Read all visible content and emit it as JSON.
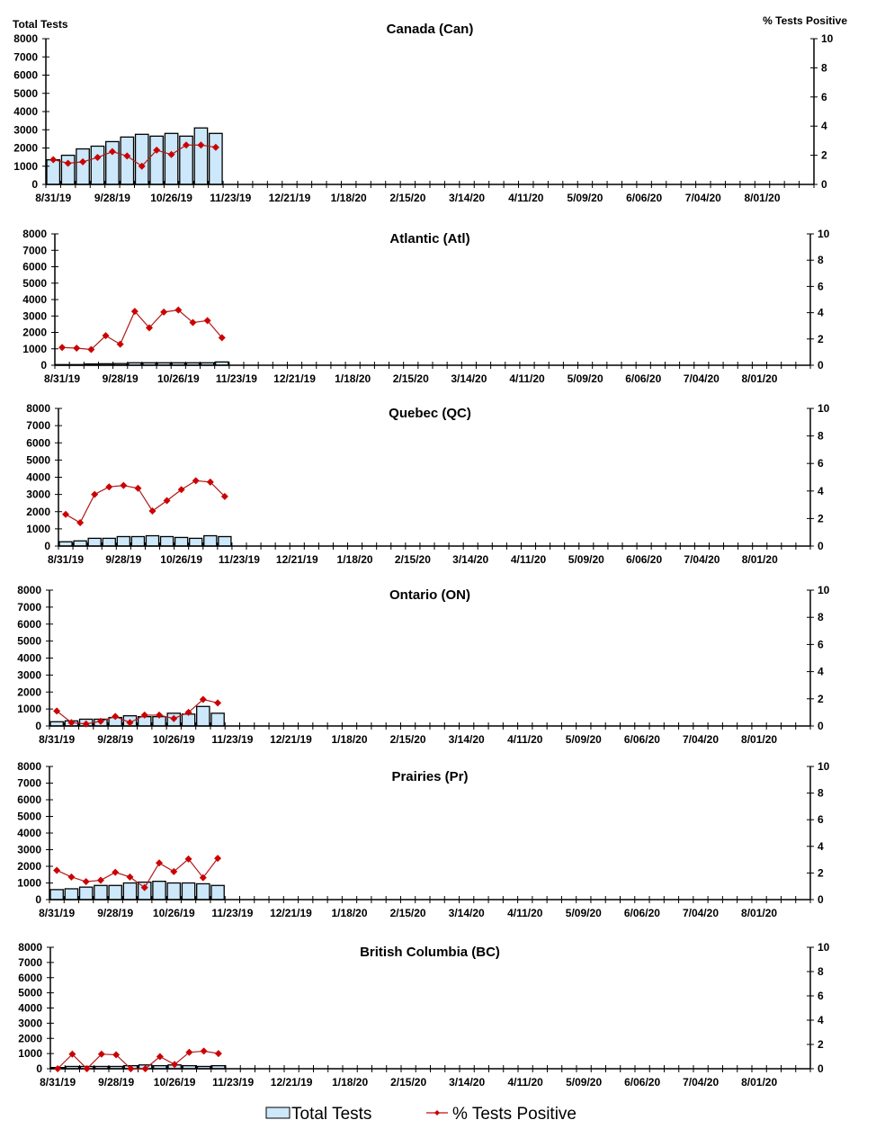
{
  "axis_titles": {
    "left": "Total Tests",
    "right": "% Tests Positive"
  },
  "legend": {
    "bars": "Total Tests",
    "line": "% Tests Positive"
  },
  "colors": {
    "bar_fill": "#cce8fa",
    "bar_stroke": "#000000",
    "line": "#b01818",
    "marker": "#cc0000"
  },
  "chart_data": [
    {
      "type": "bar+line",
      "title": "Canada (Can)",
      "grid": false,
      "legend": "bottom",
      "x_tick_labels": [
        "8/31/19",
        "9/28/19",
        "10/26/19",
        "11/23/19",
        "12/21/19",
        "1/18/20",
        "2/15/20",
        "3/14/20",
        "4/11/20",
        "5/09/20",
        "6/06/20",
        "7/04/20",
        "8/01/20"
      ],
      "xlim": [
        "8/31/19",
        "8/22/20"
      ],
      "ylim_left": [
        0,
        8000
      ],
      "ylim_right": [
        0,
        10
      ],
      "yticks_left": [
        0,
        1000,
        2000,
        3000,
        4000,
        5000,
        6000,
        7000,
        8000
      ],
      "yticks_right": [
        0,
        2,
        4,
        6,
        8,
        10
      ],
      "series": [
        {
          "name": "Total Tests",
          "axis": "left",
          "values": [
            1350,
            1600,
            1950,
            2100,
            2350,
            2600,
            2750,
            2650,
            2800,
            2650,
            3100,
            2800
          ]
        },
        {
          "name": "% Tests Positive",
          "axis": "right",
          "values": [
            1.7,
            1.45,
            1.55,
            1.85,
            2.25,
            1.95,
            1.25,
            2.35,
            2.05,
            2.7,
            2.7,
            2.55
          ]
        }
      ]
    },
    {
      "type": "bar+line",
      "title": "Atlantic (Atl)",
      "grid": false,
      "legend": "bottom",
      "x_tick_labels": [
        "8/31/19",
        "9/28/19",
        "10/26/19",
        "11/23/19",
        "12/21/19",
        "1/18/20",
        "2/15/20",
        "3/14/20",
        "4/11/20",
        "5/09/20",
        "6/06/20",
        "7/04/20",
        "8/01/20"
      ],
      "xlim": [
        "8/31/19",
        "8/22/20"
      ],
      "ylim_left": [
        0,
        8000
      ],
      "ylim_right": [
        0,
        10
      ],
      "yticks_left": [
        0,
        1000,
        2000,
        3000,
        4000,
        5000,
        6000,
        7000,
        8000
      ],
      "yticks_right": [
        0,
        2,
        4,
        6,
        8,
        10
      ],
      "series": [
        {
          "name": "Total Tests",
          "axis": "left",
          "values": [
            40,
            40,
            80,
            90,
            100,
            150,
            150,
            150,
            150,
            150,
            150,
            200
          ]
        },
        {
          "name": "% Tests Positive",
          "axis": "right",
          "values": [
            1.35,
            1.3,
            1.2,
            2.25,
            1.6,
            4.1,
            2.85,
            4.05,
            4.2,
            3.25,
            3.4,
            2.1
          ]
        }
      ]
    },
    {
      "type": "bar+line",
      "title": "Quebec (QC)",
      "grid": false,
      "legend": "bottom",
      "x_tick_labels": [
        "8/31/19",
        "9/28/19",
        "10/26/19",
        "11/23/19",
        "12/21/19",
        "1/18/20",
        "2/15/20",
        "3/14/20",
        "4/11/20",
        "5/09/20",
        "6/06/20",
        "7/04/20",
        "8/01/20"
      ],
      "xlim": [
        "8/31/19",
        "8/22/20"
      ],
      "ylim_left": [
        0,
        8000
      ],
      "ylim_right": [
        0,
        10
      ],
      "yticks_left": [
        0,
        1000,
        2000,
        3000,
        4000,
        5000,
        6000,
        7000,
        8000
      ],
      "yticks_right": [
        0,
        2,
        4,
        6,
        8,
        10
      ],
      "series": [
        {
          "name": "Total Tests",
          "axis": "left",
          "values": [
            250,
            300,
            450,
            450,
            550,
            550,
            600,
            550,
            500,
            450,
            600,
            550
          ]
        },
        {
          "name": "% Tests Positive",
          "axis": "right",
          "values": [
            2.3,
            1.7,
            3.75,
            4.3,
            4.4,
            4.2,
            2.55,
            3.3,
            4.1,
            4.75,
            4.65,
            3.6
          ]
        }
      ]
    },
    {
      "type": "bar+line",
      "title": "Ontario (ON)",
      "grid": false,
      "legend": "bottom",
      "x_tick_labels": [
        "8/31/19",
        "9/28/19",
        "10/26/19",
        "11/23/19",
        "12/21/19",
        "1/18/20",
        "2/15/20",
        "3/14/20",
        "4/11/20",
        "5/09/20",
        "6/06/20",
        "7/04/20",
        "8/01/20"
      ],
      "xlim": [
        "8/31/19",
        "8/22/20"
      ],
      "ylim_left": [
        0,
        8000
      ],
      "ylim_right": [
        0,
        10
      ],
      "yticks_left": [
        0,
        1000,
        2000,
        3000,
        4000,
        5000,
        6000,
        7000,
        8000
      ],
      "yticks_right": [
        0,
        2,
        4,
        6,
        8,
        10
      ],
      "series": [
        {
          "name": "Total Tests",
          "axis": "left",
          "values": [
            250,
            300,
            400,
            400,
            500,
            600,
            550,
            550,
            750,
            700,
            1150,
            750
          ]
        },
        {
          "name": "% Tests Positive",
          "axis": "right",
          "values": [
            1.1,
            0.25,
            0.15,
            0.35,
            0.7,
            0.25,
            0.8,
            0.8,
            0.55,
            1.0,
            1.95,
            1.7
          ]
        }
      ]
    },
    {
      "type": "bar+line",
      "title": "Prairies (Pr)",
      "grid": false,
      "legend": "bottom",
      "x_tick_labels": [
        "8/31/19",
        "9/28/19",
        "10/26/19",
        "11/23/19",
        "12/21/19",
        "1/18/20",
        "2/15/20",
        "3/14/20",
        "4/11/20",
        "5/09/20",
        "6/06/20",
        "7/04/20",
        "8/01/20"
      ],
      "xlim": [
        "8/31/19",
        "8/22/20"
      ],
      "ylim_left": [
        0,
        8000
      ],
      "ylim_right": [
        0,
        10
      ],
      "yticks_left": [
        0,
        1000,
        2000,
        3000,
        4000,
        5000,
        6000,
        7000,
        8000
      ],
      "yticks_right": [
        0,
        2,
        4,
        6,
        8,
        10
      ],
      "series": [
        {
          "name": "Total Tests",
          "axis": "left",
          "values": [
            600,
            650,
            750,
            850,
            850,
            1000,
            1050,
            1100,
            1000,
            1000,
            950,
            850
          ]
        },
        {
          "name": "% Tests Positive",
          "axis": "right",
          "values": [
            2.2,
            1.7,
            1.35,
            1.45,
            2.05,
            1.7,
            0.9,
            2.75,
            2.1,
            3.05,
            1.65,
            3.1
          ]
        }
      ]
    },
    {
      "type": "bar+line",
      "title": "British Columbia (BC)",
      "grid": false,
      "legend": "bottom",
      "x_tick_labels": [
        "8/31/19",
        "9/28/19",
        "10/26/19",
        "11/23/19",
        "12/21/19",
        "1/18/20",
        "2/15/20",
        "3/14/20",
        "4/11/20",
        "5/09/20",
        "6/06/20",
        "7/04/20",
        "8/01/20"
      ],
      "xlim": [
        "8/31/19",
        "8/22/20"
      ],
      "ylim_left": [
        0,
        8000
      ],
      "ylim_right": [
        0,
        10
      ],
      "yticks_left": [
        0,
        1000,
        2000,
        3000,
        4000,
        5000,
        6000,
        7000,
        8000
      ],
      "yticks_right": [
        0,
        2,
        4,
        6,
        8,
        10
      ],
      "series": [
        {
          "name": "Total Tests",
          "axis": "left",
          "values": [
            80,
            150,
            150,
            150,
            150,
            200,
            250,
            200,
            250,
            200,
            150,
            200
          ]
        },
        {
          "name": "% Tests Positive",
          "axis": "right",
          "values": [
            0,
            1.2,
            0,
            1.2,
            1.15,
            0,
            0,
            1.0,
            0.35,
            1.35,
            1.45,
            1.25
          ]
        }
      ]
    }
  ]
}
